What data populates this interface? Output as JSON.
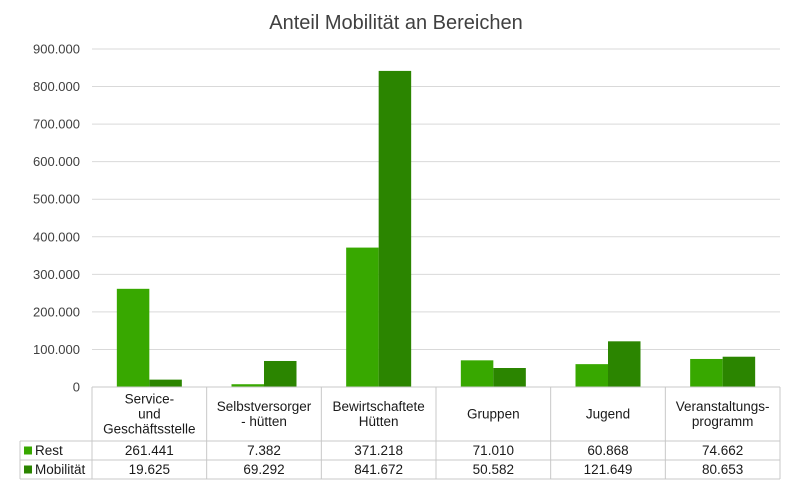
{
  "chart_data": {
    "type": "bar",
    "title": "Anteil Mobilität an Bereichen",
    "categories": [
      [
        "Service-",
        "und",
        "Geschäftsstelle"
      ],
      [
        "Selbstversorger",
        "- hütten"
      ],
      [
        "Bewirtschaftete",
        "Hütten"
      ],
      [
        "Gruppen"
      ],
      [
        "Jugend"
      ],
      [
        "Veranstaltungs-",
        "programm"
      ]
    ],
    "series": [
      {
        "name": "Rest",
        "color": "#38a800",
        "values": [
          261441,
          7382,
          371218,
          71010,
          60868,
          74662
        ],
        "labels": [
          "261.441",
          "7.382",
          "371.218",
          "71.010",
          "60.868",
          "74.662"
        ]
      },
      {
        "name": "Mobilität",
        "color": "#2b8500",
        "values": [
          19625,
          69292,
          841672,
          50582,
          121649,
          80653
        ],
        "labels": [
          "19.625",
          "69.292",
          "841.672",
          "50.582",
          "121.649",
          "80.653"
        ]
      }
    ],
    "yticks": [
      {
        "value": 0,
        "label": "0"
      },
      {
        "value": 100000,
        "label": "100.000"
      },
      {
        "value": 200000,
        "label": "200.000"
      },
      {
        "value": 300000,
        "label": "300.000"
      },
      {
        "value": 400000,
        "label": "400.000"
      },
      {
        "value": 500000,
        "label": "500.000"
      },
      {
        "value": 600000,
        "label": "600.000"
      },
      {
        "value": 700000,
        "label": "700.000"
      },
      {
        "value": 800000,
        "label": "800.000"
      },
      {
        "value": 900000,
        "label": "900.000"
      }
    ],
    "ylim": [
      0,
      900000
    ],
    "grid": true,
    "legend": "data-table"
  }
}
